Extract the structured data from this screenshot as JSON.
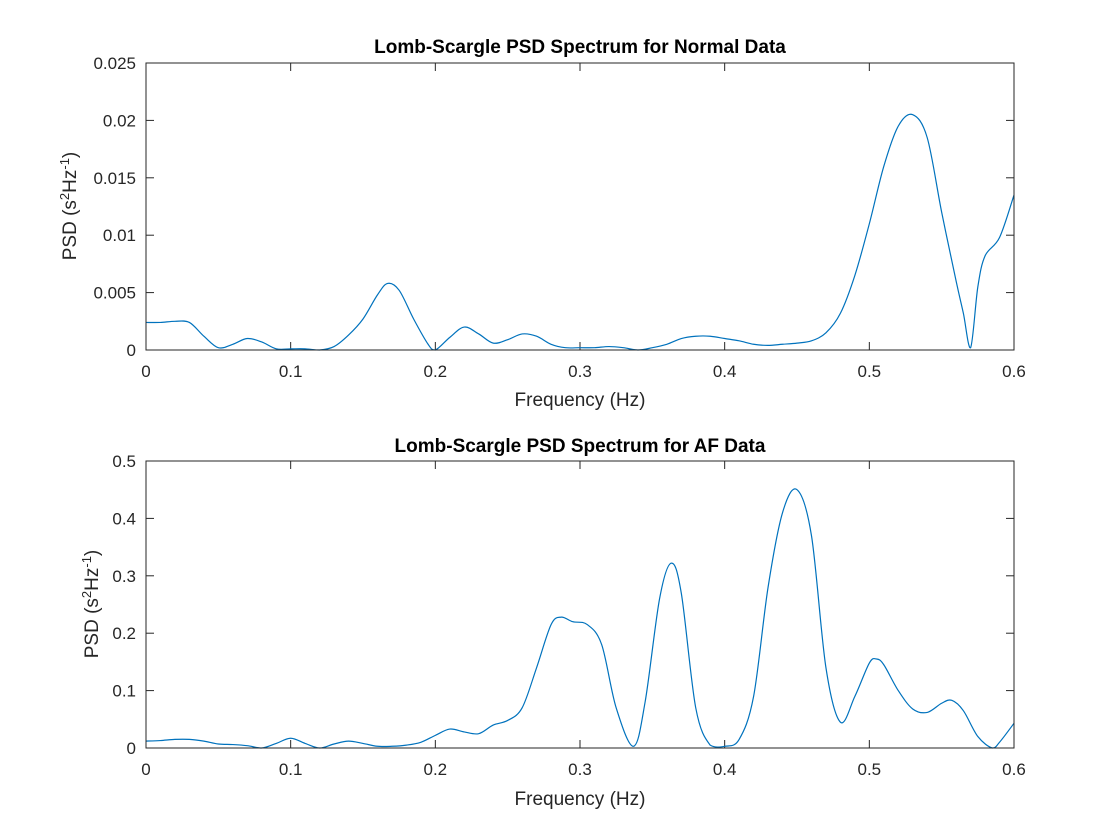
{
  "chart_data": [
    {
      "type": "line",
      "title": "Lomb-Scargle PSD Spectrum for Normal Data",
      "xlabel": "Frequency (Hz)",
      "ylabel": {
        "base": "PSD (s",
        "sup1": "2",
        "mid": "Hz",
        "sup2": "-1",
        "end": ")"
      },
      "xlim": [
        0,
        0.6
      ],
      "ylim": [
        0,
        0.025
      ],
      "xticks": [
        0,
        0.1,
        0.2,
        0.3,
        0.4,
        0.5,
        0.6
      ],
      "xtick_labels": [
        "0",
        "0.1",
        "0.2",
        "0.3",
        "0.4",
        "0.5",
        "0.6"
      ],
      "yticks": [
        0,
        0.005,
        0.01,
        0.015,
        0.02,
        0.025
      ],
      "ytick_labels": [
        "0",
        "0.005",
        "0.01",
        "0.015",
        "0.02",
        "0.025"
      ],
      "color": "#0072bd",
      "x": [
        0,
        0.01,
        0.02,
        0.03,
        0.04,
        0.05,
        0.06,
        0.07,
        0.08,
        0.09,
        0.1,
        0.11,
        0.12,
        0.13,
        0.14,
        0.15,
        0.16,
        0.167,
        0.175,
        0.185,
        0.195,
        0.2,
        0.21,
        0.22,
        0.23,
        0.24,
        0.25,
        0.26,
        0.27,
        0.28,
        0.29,
        0.3,
        0.31,
        0.32,
        0.33,
        0.34,
        0.35,
        0.36,
        0.37,
        0.38,
        0.39,
        0.4,
        0.41,
        0.42,
        0.43,
        0.44,
        0.45,
        0.46,
        0.47,
        0.48,
        0.49,
        0.5,
        0.51,
        0.52,
        0.53,
        0.54,
        0.55,
        0.56,
        0.565,
        0.57,
        0.575,
        0.58,
        0.59,
        0.6
      ],
      "y": [
        0.0024,
        0.0024,
        0.0025,
        0.0024,
        0.0012,
        0.0002,
        0.0005,
        0.001,
        0.0007,
        0.0001,
        0.0001,
        0.0001,
        0.0,
        0.0003,
        0.0013,
        0.0027,
        0.0048,
        0.0058,
        0.0052,
        0.0027,
        0.0005,
        0.0,
        0.0011,
        0.002,
        0.0014,
        0.0006,
        0.0009,
        0.0014,
        0.0012,
        0.0005,
        0.0002,
        0.0002,
        0.0002,
        0.0003,
        0.0002,
        0.0,
        0.0002,
        0.0005,
        0.001,
        0.0012,
        0.0012,
        0.001,
        0.0008,
        0.0005,
        0.0004,
        0.0005,
        0.0006,
        0.0008,
        0.0015,
        0.0032,
        0.0065,
        0.011,
        0.016,
        0.0195,
        0.0205,
        0.0185,
        0.012,
        0.006,
        0.0032,
        0.0002,
        0.0055,
        0.0082,
        0.0098,
        0.0135
      ]
    },
    {
      "type": "line",
      "title": "Lomb-Scargle PSD Spectrum for AF Data",
      "xlabel": "Frequency (Hz)",
      "ylabel": {
        "base": "PSD (s",
        "sup1": "2",
        "mid": "Hz",
        "sup2": "-1",
        "end": ")"
      },
      "xlim": [
        0,
        0.6
      ],
      "ylim": [
        0,
        0.5
      ],
      "xticks": [
        0,
        0.1,
        0.2,
        0.3,
        0.4,
        0.5,
        0.6
      ],
      "xtick_labels": [
        "0",
        "0.1",
        "0.2",
        "0.3",
        "0.4",
        "0.5",
        "0.6"
      ],
      "yticks": [
        0,
        0.1,
        0.2,
        0.3,
        0.4,
        0.5
      ],
      "ytick_labels": [
        "0",
        "0.1",
        "0.2",
        "0.3",
        "0.4",
        "0.5"
      ],
      "color": "#0072bd",
      "x": [
        0,
        0.01,
        0.02,
        0.03,
        0.04,
        0.05,
        0.06,
        0.07,
        0.08,
        0.09,
        0.1,
        0.11,
        0.12,
        0.13,
        0.14,
        0.15,
        0.16,
        0.17,
        0.18,
        0.19,
        0.2,
        0.21,
        0.22,
        0.23,
        0.24,
        0.25,
        0.26,
        0.27,
        0.28,
        0.287,
        0.295,
        0.305,
        0.315,
        0.325,
        0.337,
        0.345,
        0.355,
        0.363,
        0.37,
        0.38,
        0.39,
        0.4,
        0.41,
        0.42,
        0.43,
        0.44,
        0.45,
        0.46,
        0.47,
        0.48,
        0.49,
        0.5,
        0.505,
        0.51,
        0.52,
        0.53,
        0.54,
        0.55,
        0.557,
        0.565,
        0.575,
        0.585,
        0.59,
        0.6
      ],
      "y": [
        0.012,
        0.013,
        0.015,
        0.015,
        0.012,
        0.007,
        0.006,
        0.004,
        0.0,
        0.008,
        0.017,
        0.008,
        0.0,
        0.007,
        0.012,
        0.008,
        0.003,
        0.003,
        0.005,
        0.01,
        0.022,
        0.033,
        0.028,
        0.025,
        0.04,
        0.048,
        0.07,
        0.14,
        0.215,
        0.228,
        0.22,
        0.215,
        0.18,
        0.07,
        0.003,
        0.08,
        0.26,
        0.322,
        0.27,
        0.07,
        0.005,
        0.003,
        0.015,
        0.09,
        0.28,
        0.41,
        0.45,
        0.37,
        0.14,
        0.045,
        0.09,
        0.148,
        0.155,
        0.145,
        0.1,
        0.068,
        0.062,
        0.078,
        0.083,
        0.065,
        0.02,
        0.0,
        0.01,
        0.043
      ]
    }
  ]
}
